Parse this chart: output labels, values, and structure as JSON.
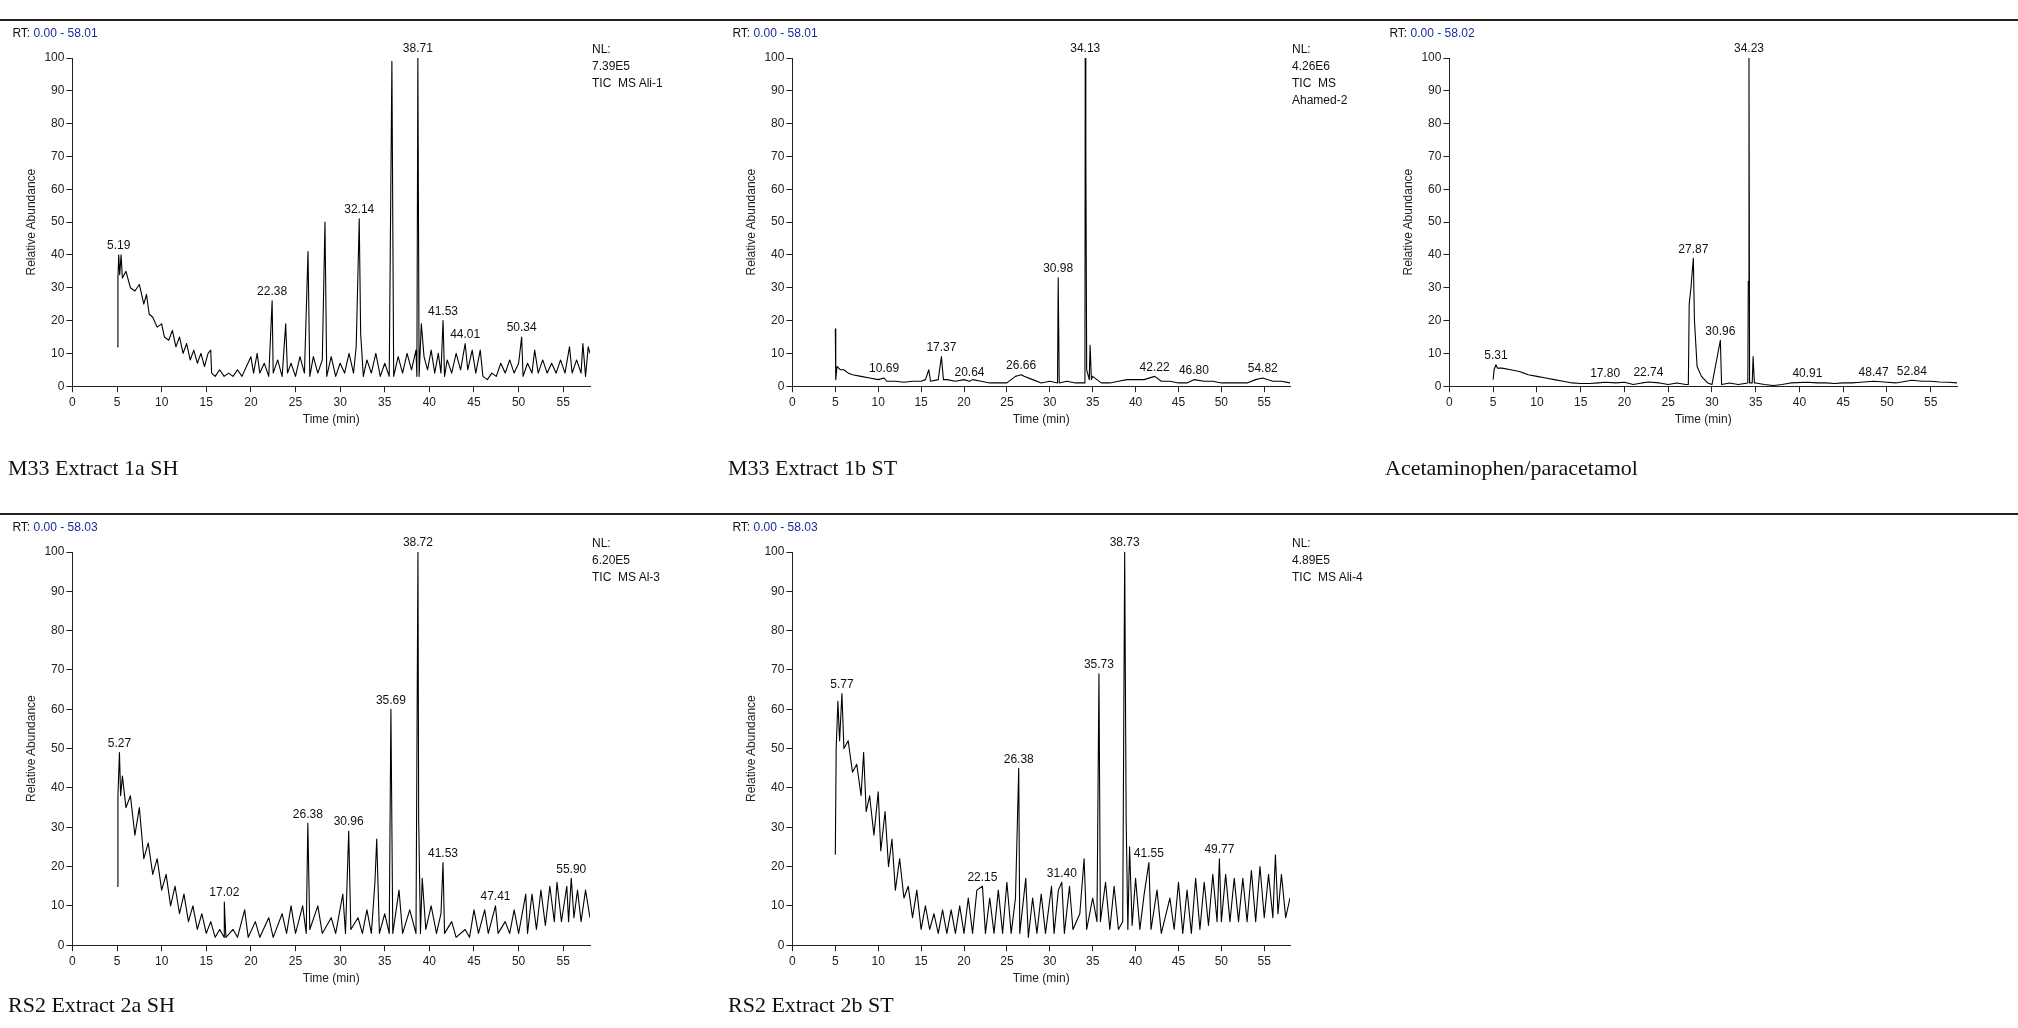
{
  "chart_data": [
    {
      "type": "line",
      "title": "M33 Extract 1a SH",
      "xlabel": "Time (min)",
      "ylabel": "Relative Abundance",
      "xlim": [
        0,
        58
      ],
      "ylim": [
        0,
        100
      ],
      "xticks": [
        0,
        5,
        10,
        15,
        20,
        25,
        30,
        35,
        40,
        45,
        50,
        55
      ],
      "yticks": [
        0,
        10,
        20,
        30,
        40,
        50,
        60,
        70,
        80,
        90,
        100
      ],
      "annotations": [
        "RT: 0.00 - 58.01",
        "NL:",
        "7.39E5",
        "TIC  MS Ali-1",
        {
          "text": "5.19",
          "x": 5.19,
          "y": 40
        },
        {
          "text": "22.38",
          "x": 22.38,
          "y": 26
        },
        {
          "text": "32.14",
          "x": 32.14,
          "y": 51
        },
        {
          "text": "38.71",
          "x": 38.71,
          "y": 100
        },
        {
          "text": "41.53",
          "x": 41.53,
          "y": 20
        },
        {
          "text": "44.01",
          "x": 44.01,
          "y": 13
        },
        {
          "text": "50.34",
          "x": 50.34,
          "y": 15
        }
      ],
      "series": [
        {
          "color": "#000000",
          "x": [
            5.0,
            5.1,
            5.19,
            5.3,
            5.45,
            5.6,
            6,
            6.5,
            7,
            7.5,
            8,
            8.3,
            8.6,
            9,
            9.5,
            10,
            10.3,
            10.8,
            11.2,
            11.6,
            12,
            12.4,
            12.8,
            13.2,
            13.6,
            14,
            14.4,
            14.8,
            15.2,
            15.5,
            15.6,
            16,
            16.5,
            17,
            17.5,
            18,
            18.5,
            19,
            19.5,
            20,
            20.3,
            20.7,
            21,
            21.5,
            22,
            22.38,
            22.5,
            23,
            23.5,
            23.9,
            24.1,
            24.5,
            25,
            25.5,
            26,
            26.4,
            26.6,
            27,
            27.5,
            28,
            28.3,
            28.5,
            29,
            29.5,
            30,
            30.5,
            31,
            31.5,
            31.8,
            32.14,
            32.3,
            32.6,
            33,
            33.5,
            34,
            34.5,
            35,
            35.5,
            35.8,
            36,
            36.5,
            37,
            37.5,
            38,
            38.5,
            38.6,
            38.71,
            38.85,
            39.1,
            39.4,
            39.8,
            40.2,
            40.6,
            41,
            41.3,
            41.53,
            41.7,
            42,
            42.5,
            43,
            43.5,
            44.01,
            44.3,
            44.8,
            45.2,
            45.7,
            46,
            46.5,
            47,
            47.5,
            48,
            48.5,
            49,
            49.5,
            50,
            50.34,
            50.5,
            51,
            51.5,
            51.8,
            52.2,
            52.7,
            53.2,
            53.7,
            54.2,
            54.7,
            55.2,
            55.7,
            56,
            56.5,
            57,
            57.2,
            57.5,
            57.8,
            58
          ],
          "values": [
            12,
            33,
            40,
            34,
            40,
            33,
            35,
            30,
            29,
            31,
            25,
            28,
            22,
            21,
            18,
            19,
            15,
            14,
            17,
            12,
            15,
            10,
            13,
            8,
            11,
            7,
            10,
            6,
            10,
            11,
            4,
            3,
            5,
            3,
            4,
            3,
            5,
            3,
            6,
            9,
            4,
            10,
            4,
            7,
            3,
            26,
            4,
            8,
            3,
            19,
            4,
            7,
            3,
            9,
            4,
            41,
            3,
            9,
            4,
            8,
            50,
            3,
            9,
            3,
            7,
            4,
            10,
            4,
            12,
            51,
            16,
            3,
            8,
            4,
            10,
            3,
            7,
            3,
            99,
            3,
            9,
            4,
            10,
            5,
            11,
            3,
            100,
            3,
            19,
            9,
            5,
            11,
            4,
            10,
            4,
            20,
            3,
            8,
            4,
            10,
            5,
            13,
            5,
            11,
            4,
            11,
            3,
            2,
            4,
            3,
            7,
            4,
            8,
            4,
            7,
            15,
            3,
            7,
            4,
            11,
            4,
            8,
            4,
            7,
            4,
            8,
            4,
            12,
            4,
            8,
            4,
            13,
            3,
            12,
            10
          ]
        }
      ]
    },
    {
      "type": "line",
      "title": "M33 Extract 1b ST",
      "xlabel": "Time (min)",
      "ylabel": "Relative Abundance",
      "xlim": [
        0,
        58
      ],
      "ylim": [
        0,
        100
      ],
      "xticks": [
        0,
        5,
        10,
        15,
        20,
        25,
        30,
        35,
        40,
        45,
        50,
        55
      ],
      "yticks": [
        0,
        10,
        20,
        30,
        40,
        50,
        60,
        70,
        80,
        90,
        100
      ],
      "annotations": [
        "RT: 0.00 - 58.01",
        "NL:",
        "4.26E6",
        "TIC  MS",
        "Ahamed-2",
        {
          "text": "10.69",
          "x": 10.69,
          "y": 2.5
        },
        {
          "text": "17.37",
          "x": 17.37,
          "y": 9
        },
        {
          "text": "20.64",
          "x": 20.64,
          "y": 1.5
        },
        {
          "text": "26.66",
          "x": 26.66,
          "y": 3.5
        },
        {
          "text": "30.98",
          "x": 30.98,
          "y": 33
        },
        {
          "text": "34.13",
          "x": 34.13,
          "y": 100
        },
        {
          "text": "42.22",
          "x": 42.22,
          "y": 3
        },
        {
          "text": "46.80",
          "x": 46.8,
          "y": 2
        },
        {
          "text": "54.82",
          "x": 54.82,
          "y": 2.5
        }
      ],
      "series": [
        {
          "color": "#000000",
          "x": [
            5.0,
            5.05,
            5.2,
            5.6,
            6,
            6.5,
            7,
            8,
            9,
            10,
            10.69,
            11,
            12,
            13,
            14,
            15,
            15.5,
            15.9,
            16.1,
            17,
            17.37,
            17.6,
            18,
            19,
            20,
            20.64,
            21,
            22,
            23,
            24,
            25,
            26,
            26.66,
            27,
            28,
            29,
            30,
            30.9,
            30.98,
            31.1,
            32,
            33,
            34.0,
            34.1,
            34.13,
            34.2,
            34.3,
            34.6,
            34.7,
            34.85,
            35,
            36,
            37,
            38,
            39,
            40,
            41,
            42.22,
            43,
            44,
            45,
            46,
            46.8,
            48,
            49,
            50,
            51,
            52,
            53,
            54,
            54.82,
            56,
            57,
            58
          ],
          "values": [
            17.5,
            2,
            6,
            5,
            5,
            4,
            3.5,
            3,
            2.5,
            2,
            2.5,
            1.5,
            1.5,
            1.2,
            1.5,
            1.5,
            2,
            5,
            1.5,
            2,
            9,
            2,
            2,
            1.5,
            2,
            1.5,
            2,
            1.5,
            1,
            1,
            1,
            3,
            3.5,
            3,
            2,
            1,
            1.5,
            1,
            33,
            1,
            1.5,
            1,
            1,
            9,
            100,
            73,
            5,
            2,
            12.5,
            2,
            3,
            1,
            1,
            1.5,
            2,
            2,
            2,
            3,
            1.5,
            1.5,
            1,
            1,
            2,
            1.5,
            1.5,
            1,
            1,
            1,
            1,
            2,
            2.5,
            1.5,
            1.5,
            1
          ]
        }
      ]
    },
    {
      "type": "line",
      "title": "Acetaminophen/paracetamol",
      "xlabel": "Time (min)",
      "ylabel": "Relative Abundance",
      "xlim": [
        0,
        58
      ],
      "ylim": [
        0,
        100
      ],
      "xticks": [
        0,
        5,
        10,
        15,
        20,
        25,
        30,
        35,
        40,
        45,
        50,
        55
      ],
      "yticks": [
        0,
        10,
        20,
        30,
        40,
        50,
        60,
        70,
        80,
        90,
        100
      ],
      "annotations": [
        "RT: 0.00 - 58.02",
        {
          "text": "5.31",
          "x": 5.31,
          "y": 6.5
        },
        {
          "text": "17.80",
          "x": 17.8,
          "y": 1.2
        },
        {
          "text": "22.74",
          "x": 22.74,
          "y": 1.3
        },
        {
          "text": "27.87",
          "x": 27.87,
          "y": 39
        },
        {
          "text": "30.96",
          "x": 30.96,
          "y": 14
        },
        {
          "text": "34.23",
          "x": 34.23,
          "y": 100
        },
        {
          "text": "40.91",
          "x": 40.91,
          "y": 1.2
        },
        {
          "text": "48.47",
          "x": 48.47,
          "y": 1.5
        },
        {
          "text": "52.84",
          "x": 52.84,
          "y": 1.8
        }
      ],
      "series": [
        {
          "color": "#000000",
          "x": [
            5.0,
            5.1,
            5.31,
            5.5,
            6,
            7,
            8,
            9,
            10,
            11,
            12,
            13,
            14,
            15,
            16,
            17,
            17.8,
            19,
            20,
            21,
            22,
            22.74,
            24,
            25,
            26,
            27,
            27.3,
            27.4,
            27.6,
            27.87,
            28,
            28.3,
            28.8,
            29.5,
            30,
            30.96,
            31.1,
            32,
            33,
            34.1,
            34.15,
            34.23,
            34.3,
            34.6,
            34.7,
            34.85,
            35,
            36,
            37,
            38,
            39,
            40.91,
            42,
            43,
            44,
            45,
            46,
            47,
            48.47,
            50,
            51,
            52.84,
            54,
            55,
            56,
            57,
            58
          ],
          "values": [
            2,
            5,
            6.5,
            5.5,
            5.5,
            5,
            4.5,
            3.5,
            3,
            2.5,
            2,
            1.5,
            1,
            0.8,
            0.8,
            1,
            1.2,
            1,
            1.2,
            0.5,
            1,
            1.3,
            1,
            0.5,
            1,
            0.5,
            0.5,
            25,
            30,
            39,
            20,
            6,
            3,
            1,
            0.5,
            14,
            0.5,
            1,
            0.5,
            1,
            32,
            100,
            1,
            1,
            9,
            1,
            1,
            0.5,
            0.2,
            0.5,
            1,
            1.2,
            1,
            1,
            0.8,
            1,
            1,
            1.2,
            1.5,
            1.2,
            1,
            1.8,
            1.5,
            1.5,
            1.3,
            1.2,
            1
          ]
        }
      ]
    },
    {
      "type": "line",
      "title": "RS2 Extract 2a SH",
      "xlabel": "Time (min)",
      "ylabel": "Relative Abundance",
      "xlim": [
        0,
        58
      ],
      "ylim": [
        0,
        100
      ],
      "xticks": [
        0,
        5,
        10,
        15,
        20,
        25,
        30,
        35,
        40,
        45,
        50,
        55
      ],
      "yticks": [
        0,
        10,
        20,
        30,
        40,
        50,
        60,
        70,
        80,
        90,
        100
      ],
      "annotations": [
        "RT: 0.00 - 58.03",
        "NL:",
        "6.20E5",
        "TIC  MS Al-3",
        {
          "text": "5.27",
          "x": 5.27,
          "y": 49
        },
        {
          "text": "17.02",
          "x": 17.02,
          "y": 11
        },
        {
          "text": "26.38",
          "x": 26.38,
          "y": 31
        },
        {
          "text": "30.96",
          "x": 30.96,
          "y": 29
        },
        {
          "text": "35.69",
          "x": 35.69,
          "y": 60
        },
        {
          "text": "38.72",
          "x": 38.72,
          "y": 100
        },
        {
          "text": "41.53",
          "x": 41.53,
          "y": 21
        },
        {
          "text": "47.41",
          "x": 47.41,
          "y": 10
        },
        {
          "text": "55.90",
          "x": 55.9,
          "y": 17
        }
      ],
      "series": [
        {
          "color": "#000000",
          "x": [
            5.0,
            5.1,
            5.27,
            5.4,
            5.6,
            6,
            6.5,
            7,
            7.5,
            8,
            8.5,
            9,
            9.5,
            10,
            10.5,
            11,
            11.5,
            12,
            12.5,
            13,
            13.5,
            14,
            14.5,
            15,
            15.5,
            16,
            16.5,
            17,
            17.02,
            17.2,
            18,
            18.5,
            19.3,
            19.7,
            20.5,
            21,
            22,
            22.5,
            23.5,
            24,
            24.5,
            25,
            25.8,
            26.2,
            26.38,
            26.6,
            27.5,
            28,
            29,
            29.5,
            30.3,
            30.6,
            30.96,
            31.2,
            32,
            32.5,
            33,
            33.5,
            33.9,
            34.1,
            34.4,
            35,
            35.5,
            35.69,
            35.9,
            36.6,
            37,
            37.8,
            38.5,
            38.72,
            38.8,
            39,
            39.2,
            39.6,
            40.2,
            40.8,
            41.3,
            41.53,
            41.7,
            42.5,
            43,
            44,
            44.5,
            45,
            45.5,
            46.2,
            46.6,
            47.41,
            47.7,
            48.5,
            49,
            49.5,
            50,
            50.8,
            51,
            51.5,
            52,
            52.5,
            53,
            53.5,
            54,
            54.3,
            54.8,
            55.4,
            55.6,
            55.9,
            56.2,
            56.6,
            57,
            57.5,
            58
          ],
          "values": [
            15,
            38,
            49,
            38,
            43,
            35,
            38,
            28,
            35,
            22,
            26,
            18,
            22,
            14,
            18,
            10,
            15,
            8,
            13,
            6,
            10,
            4,
            8,
            3,
            6,
            2,
            4,
            2,
            11,
            2,
            4,
            2,
            9,
            2,
            6,
            2,
            7,
            2,
            8,
            3,
            10,
            3,
            10,
            3,
            31,
            4,
            10,
            3,
            7,
            3,
            13,
            3,
            29,
            4,
            7,
            3,
            9,
            3,
            16,
            27,
            3,
            8,
            3,
            60,
            3,
            14,
            3,
            9,
            3,
            100,
            32,
            3,
            17,
            4,
            10,
            3,
            8,
            21,
            3,
            6,
            2,
            4,
            2,
            9,
            3,
            9,
            3,
            10,
            3,
            6,
            3,
            9,
            3,
            13,
            3,
            13,
            4,
            14,
            5,
            15,
            6,
            16,
            6,
            15,
            6,
            17,
            7,
            14,
            6,
            14,
            7
          ]
        }
      ]
    },
    {
      "type": "line",
      "title": "RS2 Extract 2b ST",
      "xlabel": "Time (min)",
      "ylabel": "Relative Abundance",
      "xlim": [
        0,
        58
      ],
      "ylim": [
        0,
        100
      ],
      "xticks": [
        0,
        5,
        10,
        15,
        20,
        25,
        30,
        35,
        40,
        45,
        50,
        55
      ],
      "yticks": [
        0,
        10,
        20,
        30,
        40,
        50,
        60,
        70,
        80,
        90,
        100
      ],
      "annotations": [
        "RT: 0.00 - 58.03",
        "NL:",
        "4.89E5",
        "TIC  MS Ali-4",
        {
          "text": "5.77",
          "x": 5.77,
          "y": 64
        },
        {
          "text": "22.15",
          "x": 22.15,
          "y": 15
        },
        {
          "text": "26.38",
          "x": 26.38,
          "y": 45
        },
        {
          "text": "31.40",
          "x": 31.4,
          "y": 16
        },
        {
          "text": "35.73",
          "x": 35.73,
          "y": 69
        },
        {
          "text": "38.73",
          "x": 38.73,
          "y": 100
        },
        {
          "text": "41.55",
          "x": 41.55,
          "y": 21
        },
        {
          "text": "49.77",
          "x": 49.77,
          "y": 22
        }
      ],
      "series": [
        {
          "color": "#000000",
          "x": [
            5.0,
            5.1,
            5.3,
            5.5,
            5.77,
            6,
            6.5,
            7,
            7.5,
            8,
            8.3,
            8.6,
            9,
            9.5,
            10,
            10.3,
            10.8,
            11.2,
            11.6,
            12,
            12.5,
            13,
            13.5,
            14,
            14.5,
            15,
            15.5,
            16,
            16.5,
            17,
            17.5,
            18,
            18.5,
            19,
            19.5,
            20,
            20.5,
            21,
            21.5,
            22.15,
            22.5,
            23,
            23.5,
            24,
            24.5,
            25,
            25.5,
            26,
            26.38,
            26.5,
            27.2,
            27.5,
            28,
            28.5,
            29,
            29.5,
            30.2,
            30.5,
            31,
            31.4,
            31.7,
            32.3,
            32.7,
            33.5,
            34,
            34.3,
            35,
            35.5,
            35.73,
            35.9,
            36.5,
            37,
            37.5,
            38,
            38.5,
            38.73,
            38.9,
            39.1,
            39.3,
            39.6,
            40,
            40.5,
            41,
            41.55,
            41.8,
            42.5,
            43,
            44,
            44.5,
            45,
            45.5,
            46,
            46.5,
            47,
            47.5,
            48,
            48.5,
            49,
            49.5,
            49.77,
            50,
            50.5,
            51,
            51.5,
            52,
            52.5,
            53,
            53.5,
            54,
            54.5,
            55,
            55.5,
            56,
            56.3,
            56.6,
            57,
            57.5,
            58
          ],
          "values": [
            23,
            50,
            62,
            52,
            64,
            50,
            52,
            44,
            46,
            38,
            49,
            34,
            38,
            28,
            39,
            24,
            34,
            20,
            27,
            14,
            22,
            12,
            15,
            7,
            14,
            4,
            10,
            4,
            8,
            3,
            9,
            3,
            9,
            3,
            10,
            3,
            12,
            3,
            14,
            15,
            3,
            12,
            3,
            14,
            3,
            16,
            3,
            12,
            45,
            3,
            17,
            2,
            12,
            3,
            13,
            3,
            15,
            3,
            14,
            16,
            3,
            15,
            4,
            8,
            22,
            4,
            12,
            6,
            69,
            6,
            16,
            4,
            15,
            4,
            6,
            100,
            32,
            4,
            25,
            5,
            17,
            4,
            13,
            21,
            4,
            14,
            3,
            12,
            4,
            16,
            3,
            14,
            3,
            17,
            4,
            16,
            5,
            18,
            6,
            22,
            6,
            18,
            6,
            17,
            6,
            17,
            6,
            19,
            6,
            20,
            7,
            18,
            7,
            23,
            8,
            18,
            7,
            12
          ]
        }
      ]
    }
  ]
}
